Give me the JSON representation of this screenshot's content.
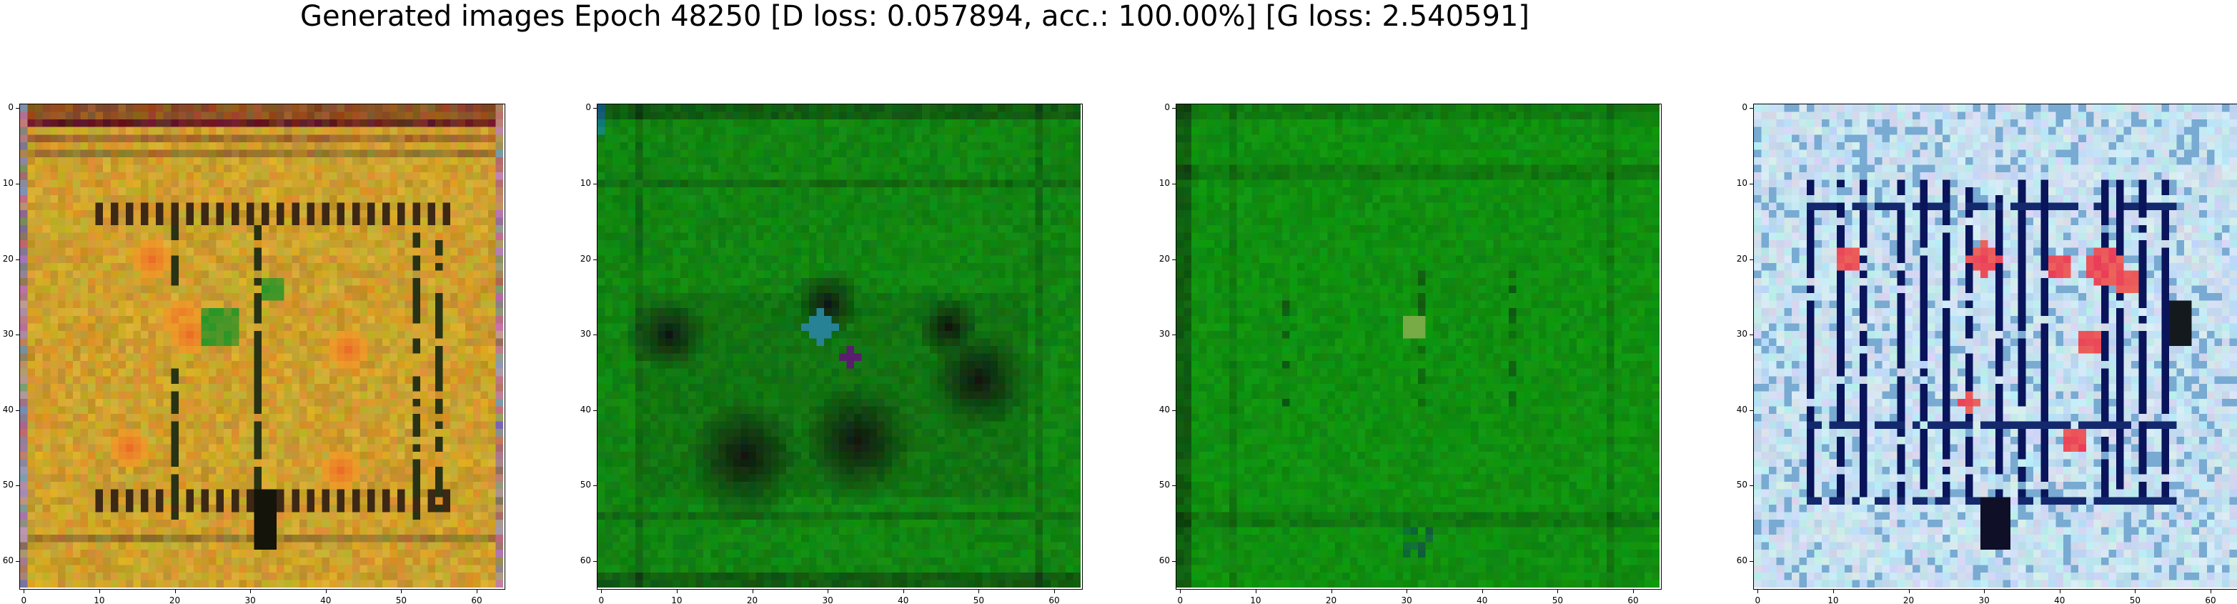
{
  "figure": {
    "title": "Generated images Epoch 48250 [D loss: 0.057894, acc.: 100.00%] [G loss: 2.540591]"
  },
  "axes": {
    "y_ticks": [
      "0",
      "10",
      "20",
      "30",
      "40",
      "50",
      "60"
    ],
    "x_ticks": [
      "0",
      "10",
      "20",
      "30",
      "40",
      "50",
      "60"
    ]
  },
  "panels": [
    {
      "name": "generated-image-1",
      "palette": "yellow-ochre"
    },
    {
      "name": "generated-image-2",
      "palette": "dark-green"
    },
    {
      "name": "generated-image-3",
      "palette": "green"
    },
    {
      "name": "generated-image-4",
      "palette": "light-blue"
    }
  ]
}
